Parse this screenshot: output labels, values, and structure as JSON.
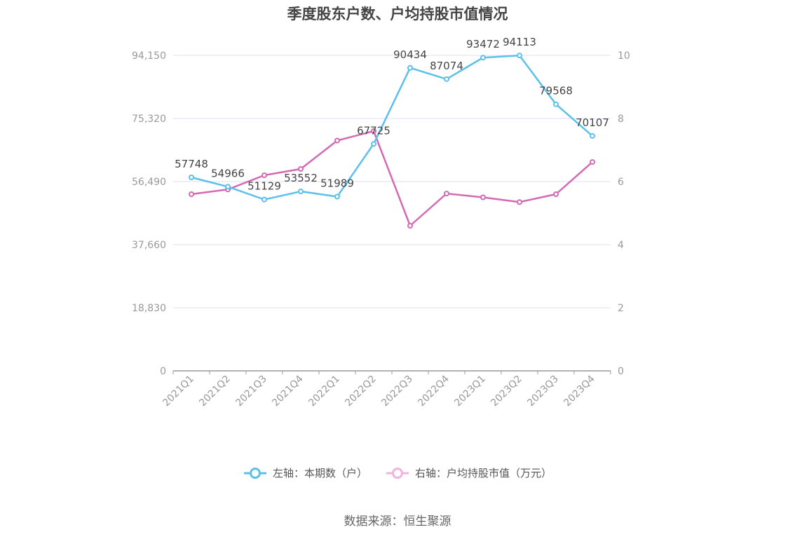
{
  "title": "季度股东户数、户均持股市值情况",
  "source": "数据来源：恒生聚源",
  "legend": {
    "left_label": "左轴：本期数（户）",
    "right_label": "右轴：户均持股市值（万元）"
  },
  "colors": {
    "holders": "#5bc0eb",
    "value": "#d46ab4",
    "grid": "#dcdff0",
    "axis": "#999999",
    "tick_text": "#999999",
    "label_text": "#444444"
  },
  "chart_data": {
    "type": "line",
    "categories": [
      "2021Q1",
      "2021Q2",
      "2021Q3",
      "2021Q4",
      "2022Q1",
      "2022Q2",
      "2022Q3",
      "2022Q4",
      "2023Q1",
      "2023Q2",
      "2023Q3",
      "2023Q4"
    ],
    "y_left": {
      "ticks": [
        "0",
        "18,830",
        "37,660",
        "56,490",
        "75,320",
        "94,150"
      ],
      "range": [
        0,
        94150
      ]
    },
    "y_right": {
      "ticks": [
        "0",
        "2",
        "4",
        "6",
        "8",
        "10"
      ],
      "range": [
        0,
        10
      ]
    },
    "series": [
      {
        "name": "左轴：本期数（户）",
        "axis": "left",
        "values": [
          57748,
          54966,
          51129,
          53552,
          51989,
          67725,
          90434,
          87074,
          93472,
          94113,
          79568,
          70107
        ],
        "labels": [
          "57748",
          "54966",
          "51129",
          "53552",
          "51989",
          "67725",
          "90434",
          "87074",
          "93472",
          "94113",
          "79568",
          "70107"
        ]
      },
      {
        "name": "右轴：户均持股市值（万元）",
        "axis": "right",
        "values": [
          5.6,
          5.75,
          6.2,
          6.4,
          7.3,
          7.6,
          4.6,
          5.62,
          5.5,
          5.35,
          5.6,
          6.62
        ]
      }
    ],
    "grid": true,
    "legend_position": "bottom"
  }
}
